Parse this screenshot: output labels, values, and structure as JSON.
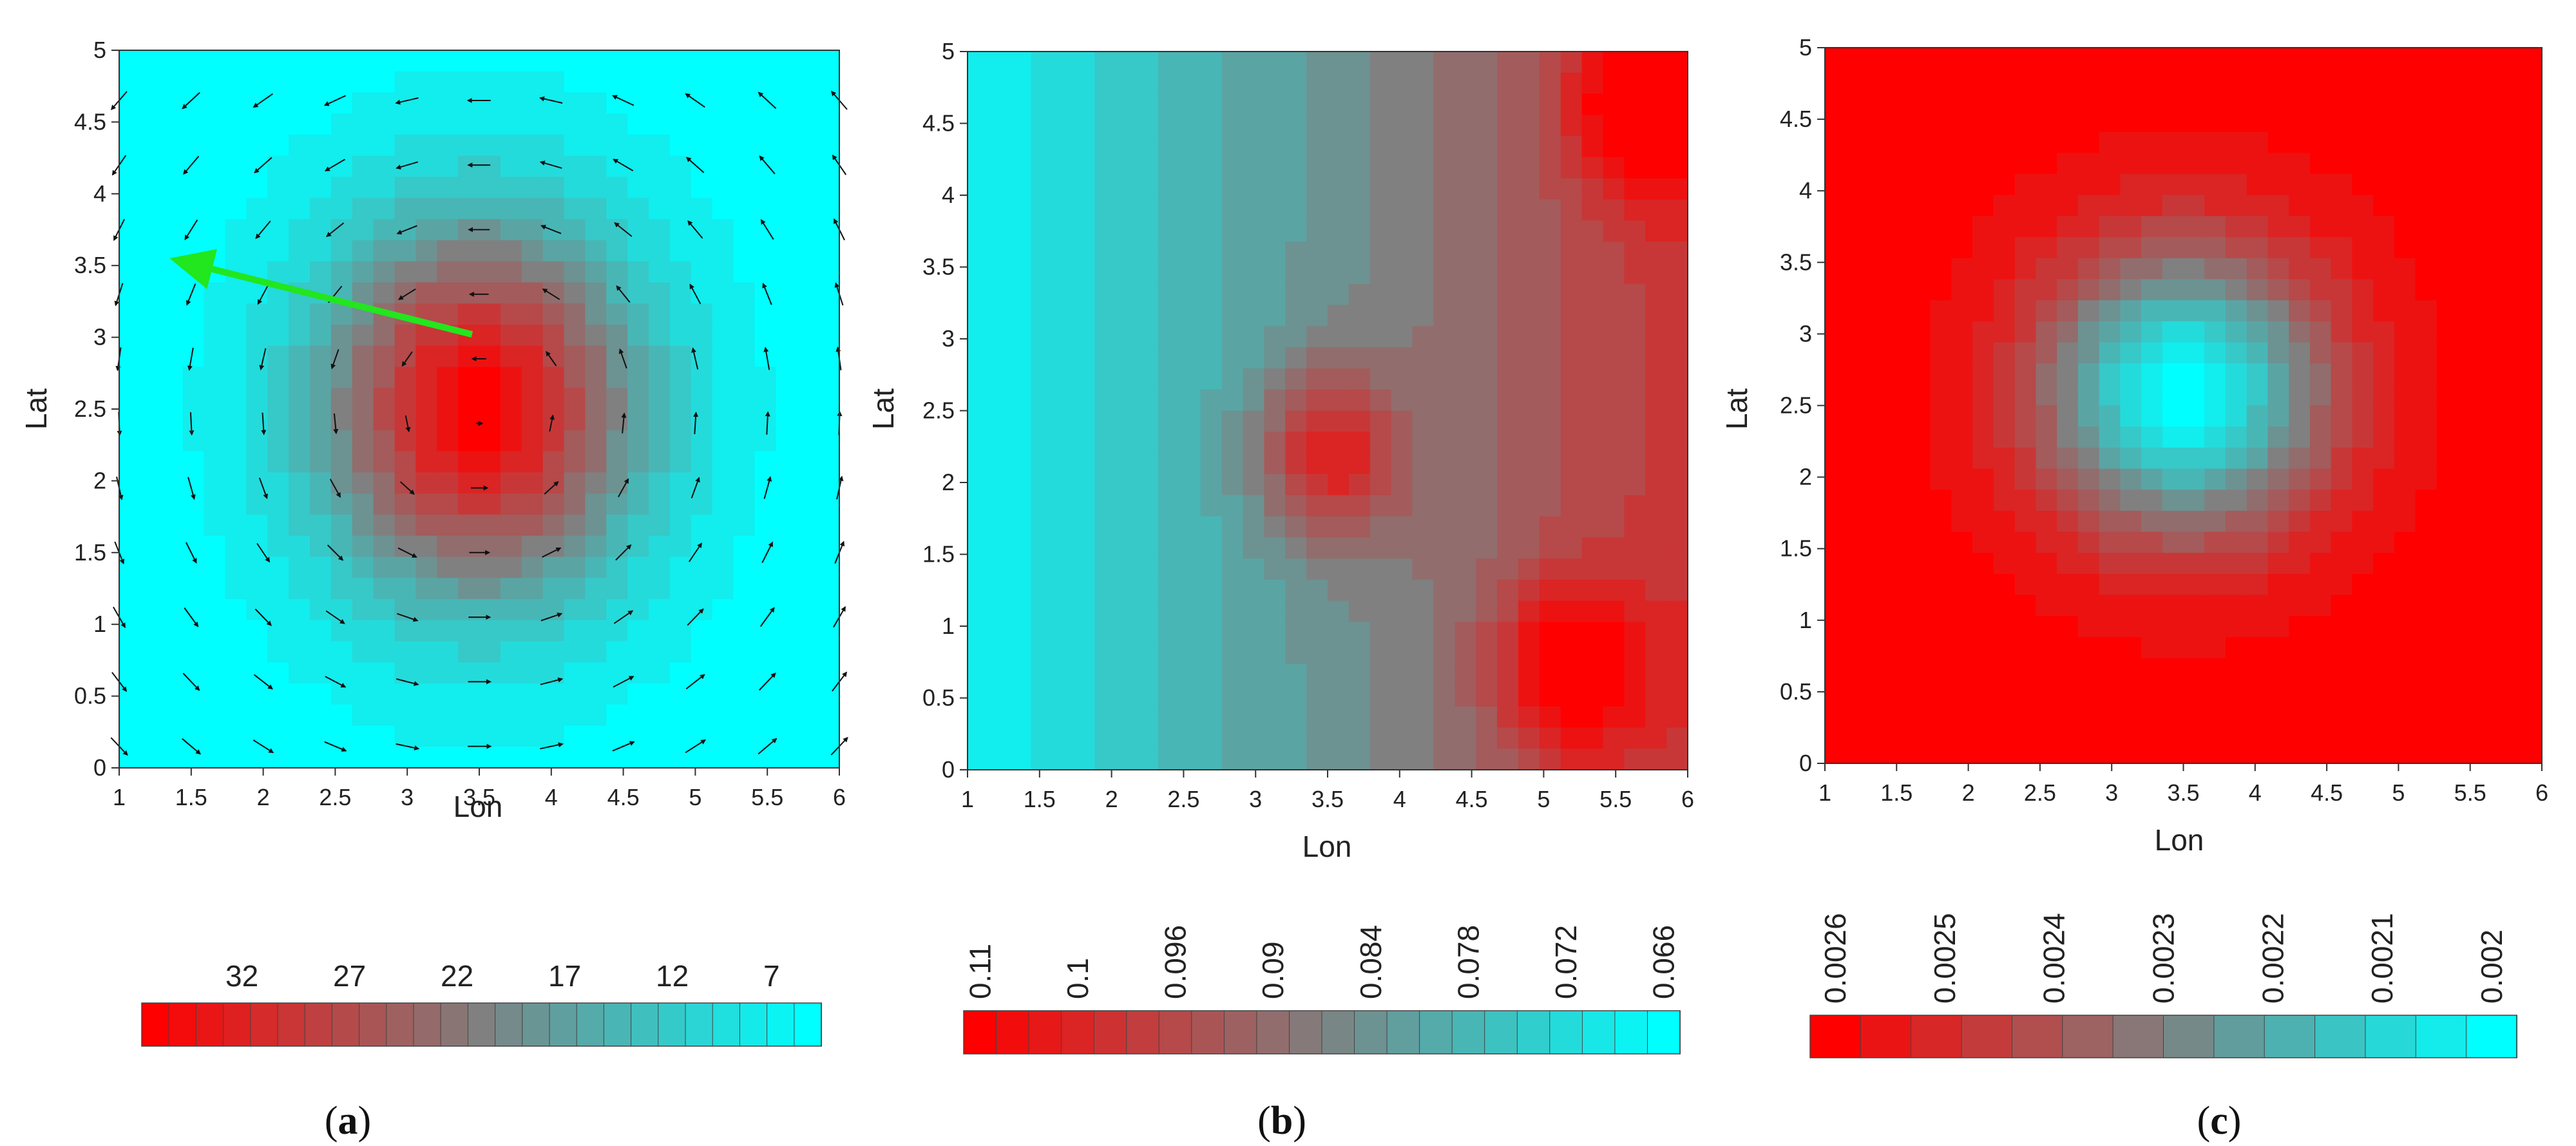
{
  "chart_data": [
    {
      "type": "heatmap",
      "panel_label": "(a)",
      "label_letter": "a",
      "xlabel": "Lon",
      "ylabel": "Lat",
      "xlim": [
        1,
        6
      ],
      "ylim": [
        0,
        5
      ],
      "x_ticks": [
        "1",
        "1.5",
        "2",
        "2.5",
        "3",
        "3.5",
        "4",
        "4.5",
        "5",
        "5.5",
        "6"
      ],
      "y_ticks": [
        "0",
        "0.5",
        "1",
        "1.5",
        "2",
        "2.5",
        "3",
        "3.5",
        "4",
        "4.5",
        "5"
      ],
      "center": [
        3.5,
        2.5
      ],
      "spread": [
        1.1,
        1.3
      ],
      "invert": false,
      "has_vectors": true,
      "annotation": {
        "type": "arrow",
        "color": "#22e61e",
        "from": [
          3.45,
          3.02
        ],
        "to": [
          1.35,
          3.55
        ]
      },
      "colorbar": {
        "labels": [
          "32",
          "27",
          "22",
          "17",
          "12",
          "7"
        ],
        "n_cells": 25,
        "rotated": false,
        "from_color": "#ff0000",
        "to_color": "#00ffff"
      }
    },
    {
      "type": "heatmap",
      "panel_label": "(b)",
      "label_letter": "b",
      "xlabel": "Lon",
      "ylabel": "Lat",
      "xlim": [
        1,
        6
      ],
      "ylim": [
        0,
        5
      ],
      "x_ticks": [
        "1",
        "1.5",
        "2",
        "2.5",
        "3",
        "3.5",
        "4",
        "4.5",
        "5",
        "5.5",
        "6"
      ],
      "y_ticks": [
        "0",
        "0.5",
        "1",
        "1.5",
        "2",
        "2.5",
        "3",
        "3.5",
        "4",
        "4.5",
        "5"
      ],
      "gradient": "x",
      "hotspots": [
        [
          5.7,
          4.6
        ],
        [
          3.5,
          2.2
        ],
        [
          5.2,
          0.7
        ]
      ],
      "invert": false,
      "has_vectors": false,
      "colorbar": {
        "labels": [
          "0.11",
          "0.1",
          "0.096",
          "0.09",
          "0.084",
          "0.078",
          "0.072",
          "0.066"
        ],
        "n_cells": 22,
        "rotated": true,
        "from_color": "#ff0000",
        "to_color": "#00ffff"
      }
    },
    {
      "type": "heatmap",
      "panel_label": "(c)",
      "label_letter": "c",
      "xlabel": "Lon",
      "ylabel": "Lat",
      "xlim": [
        1,
        6
      ],
      "ylim": [
        0,
        5
      ],
      "x_ticks": [
        "1",
        "1.5",
        "2",
        "2.5",
        "3",
        "3.5",
        "4",
        "4.5",
        "5",
        "5.5",
        "6"
      ],
      "y_ticks": [
        "0",
        "0.5",
        "1",
        "1.5",
        "2",
        "2.5",
        "3",
        "3.5",
        "4",
        "4.5",
        "5"
      ],
      "center": [
        3.5,
        2.6
      ],
      "spread": [
        1.0,
        1.0
      ],
      "invert": true,
      "has_vectors": false,
      "colorbar": {
        "labels": [
          "0.0026",
          "0.0025",
          "0.0024",
          "0.0023",
          "0.0022",
          "0.0021",
          "0.002"
        ],
        "n_cells": 14,
        "rotated": true,
        "from_color": "#ff0000",
        "to_color": "#00ffff"
      }
    }
  ]
}
